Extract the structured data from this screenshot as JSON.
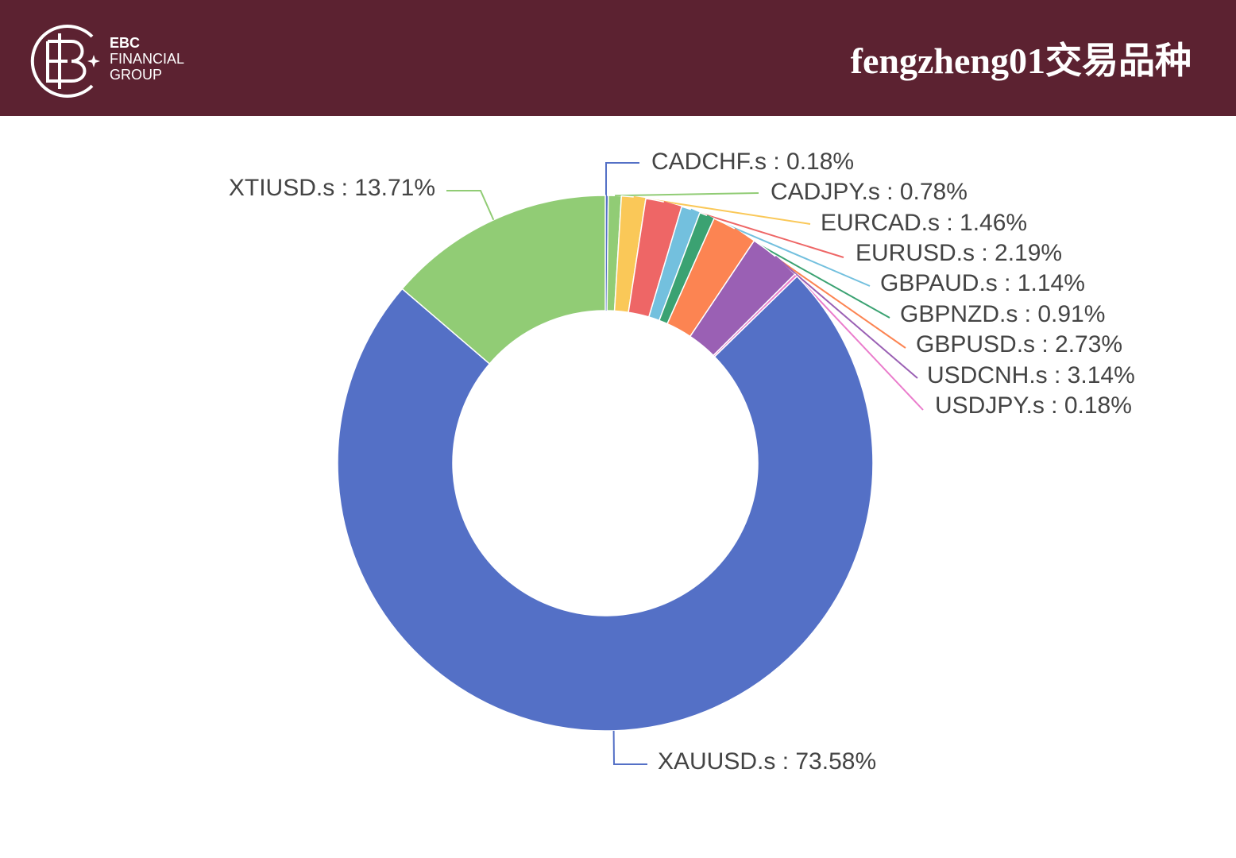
{
  "header": {
    "logo_lines": [
      "EBC",
      "FINANCIAL",
      "GROUP"
    ],
    "title": "fengzheng01交易品种"
  },
  "chart_data": {
    "type": "donut",
    "labels": [
      "CADCHF.s : 0.18%",
      "CADJPY.s : 0.78%",
      "EURCAD.s : 1.46%",
      "EURUSD.s : 2.19%",
      "GBPAUD.s : 1.14%",
      "GBPNZD.s : 0.91%",
      "GBPUSD.s : 2.73%",
      "USDCNH.s : 3.14%",
      "USDJPY.s : 0.18%",
      "XAUUSD.s : 73.58%",
      "XTIUSD.s : 13.71%"
    ],
    "values": [
      0.18,
      0.78,
      1.46,
      2.19,
      1.14,
      0.91,
      2.73,
      3.14,
      0.18,
      73.58,
      13.71
    ],
    "colors": [
      "#5470c6",
      "#91cc75",
      "#fac858",
      "#ee6666",
      "#73c0de",
      "#3ba272",
      "#fc8452",
      "#9a60b4",
      "#ea7ccc",
      "#5470c6",
      "#91cc75"
    ]
  }
}
